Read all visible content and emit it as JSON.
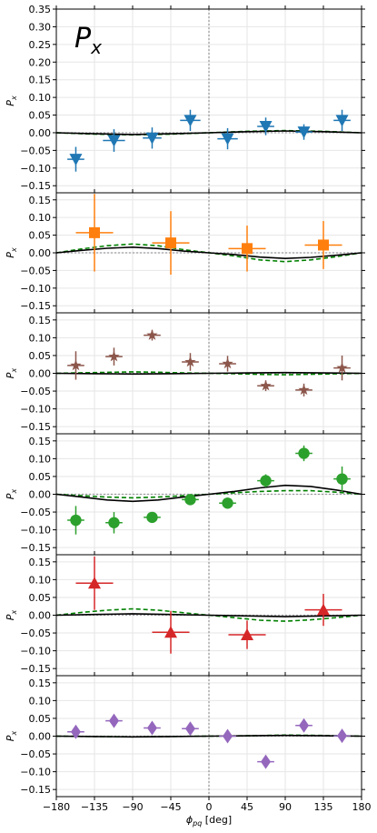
{
  "figure_title": "P_x",
  "chart_data": {
    "type": "scatter",
    "description_of_layout": "six vertically stacked panels sharing the x axis",
    "xlabel": "ϕ_pq [deg]",
    "ylabel": "P_x",
    "xlim": [
      -180,
      180
    ],
    "xticks": [
      -180,
      -135,
      -90,
      -45,
      0,
      45,
      90,
      135,
      180
    ],
    "vline_x": 0,
    "grid": true,
    "panels": [
      {
        "ylim": [
          -0.17,
          0.35
        ],
        "yticks": [
          -0.15,
          -0.1,
          -0.05,
          0.0,
          0.05,
          0.1,
          0.15,
          0.2,
          0.25,
          0.3,
          0.35
        ],
        "color": "#1f77b4",
        "marker": "triangle-down",
        "points": [
          {
            "x": -157,
            "y": -0.075,
            "xerr": 10,
            "yerr": 0.035
          },
          {
            "x": -112,
            "y": -0.022,
            "xerr": 13,
            "yerr": 0.032
          },
          {
            "x": -67,
            "y": -0.015,
            "xerr": 11,
            "yerr": 0.03
          },
          {
            "x": -22,
            "y": 0.035,
            "xerr": 12,
            "yerr": 0.03
          },
          {
            "x": 22,
            "y": -0.017,
            "xerr": 12,
            "yerr": 0.03
          },
          {
            "x": 67,
            "y": 0.018,
            "xerr": 10,
            "yerr": 0.025
          },
          {
            "x": 112,
            "y": 0.002,
            "xerr": 10,
            "yerr": 0.022
          },
          {
            "x": 157,
            "y": 0.035,
            "xerr": 10,
            "yerr": 0.03
          }
        ],
        "solid_curve": [
          [
            -180,
            0
          ],
          [
            -135,
            -0.003
          ],
          [
            -90,
            -0.005
          ],
          [
            -45,
            -0.003
          ],
          [
            0,
            0
          ],
          [
            45,
            0.003
          ],
          [
            90,
            0.005
          ],
          [
            135,
            0.003
          ],
          [
            180,
            0
          ]
        ],
        "dashed_curve": [
          [
            -180,
            0
          ],
          [
            -135,
            -0.004
          ],
          [
            -90,
            -0.006
          ],
          [
            -45,
            -0.004
          ],
          [
            0,
            0
          ],
          [
            45,
            0.004
          ],
          [
            90,
            0.006
          ],
          [
            135,
            0.004
          ],
          [
            180,
            0
          ]
        ]
      },
      {
        "ylim": [
          -0.17,
          0.17
        ],
        "yticks": [
          -0.15,
          -0.1,
          -0.05,
          0.0,
          0.05,
          0.1,
          0.15
        ],
        "color": "#ff7f0e",
        "marker": "square",
        "points": [
          {
            "x": -135,
            "y": 0.057,
            "xerr": 22,
            "yerr": 0.11
          },
          {
            "x": -45,
            "y": 0.028,
            "xerr": 22,
            "yerr": 0.09
          },
          {
            "x": 45,
            "y": 0.012,
            "xerr": 22,
            "yerr": 0.065
          },
          {
            "x": 135,
            "y": 0.022,
            "xerr": 22,
            "yerr": 0.068
          }
        ],
        "solid_curve": [
          [
            -180,
            0
          ],
          [
            -150,
            0.007
          ],
          [
            -120,
            0.013
          ],
          [
            -90,
            0.016
          ],
          [
            -60,
            0.012
          ],
          [
            -30,
            0.005
          ],
          [
            0,
            0
          ],
          [
            30,
            -0.005
          ],
          [
            60,
            -0.012
          ],
          [
            90,
            -0.016
          ],
          [
            120,
            -0.013
          ],
          [
            150,
            -0.007
          ],
          [
            180,
            0
          ]
        ],
        "dashed_curve": [
          [
            -180,
            0
          ],
          [
            -150,
            0.011
          ],
          [
            -120,
            0.02
          ],
          [
            -90,
            0.025
          ],
          [
            -60,
            0.02
          ],
          [
            -30,
            0.009
          ],
          [
            0,
            0
          ],
          [
            30,
            -0.009
          ],
          [
            60,
            -0.02
          ],
          [
            90,
            -0.025
          ],
          [
            120,
            -0.02
          ],
          [
            150,
            -0.011
          ],
          [
            180,
            0
          ]
        ]
      },
      {
        "ylim": [
          -0.17,
          0.17
        ],
        "yticks": [
          -0.15,
          -0.1,
          -0.05,
          0.0,
          0.05,
          0.1,
          0.15
        ],
        "color": "#8c564b",
        "marker": "star",
        "points": [
          {
            "x": -157,
            "y": 0.022,
            "xerr": 10,
            "yerr": 0.04
          },
          {
            "x": -112,
            "y": 0.047,
            "xerr": 10,
            "yerr": 0.025
          },
          {
            "x": -67,
            "y": 0.107,
            "xerr": 10,
            "yerr": 0.015
          },
          {
            "x": -22,
            "y": 0.032,
            "xerr": 10,
            "yerr": 0.025
          },
          {
            "x": 22,
            "y": 0.027,
            "xerr": 10,
            "yerr": 0.022
          },
          {
            "x": 67,
            "y": -0.035,
            "xerr": 10,
            "yerr": 0.015
          },
          {
            "x": 112,
            "y": -0.047,
            "xerr": 10,
            "yerr": 0.018
          },
          {
            "x": 157,
            "y": 0.015,
            "xerr": 10,
            "yerr": 0.035
          }
        ],
        "solid_curve": [
          [
            -180,
            0
          ],
          [
            -135,
            -0.001
          ],
          [
            -90,
            -0.002
          ],
          [
            -45,
            -0.001
          ],
          [
            0,
            0
          ],
          [
            45,
            0.001
          ],
          [
            90,
            0.002
          ],
          [
            135,
            0.001
          ],
          [
            180,
            0
          ]
        ],
        "dashed_curve": [
          [
            -180,
            0
          ],
          [
            -135,
            0.002
          ],
          [
            -90,
            0.004
          ],
          [
            -60,
            0.003
          ],
          [
            -30,
            0.001
          ],
          [
            0,
            0
          ],
          [
            30,
            -0.001
          ],
          [
            60,
            -0.003
          ],
          [
            90,
            -0.004
          ],
          [
            135,
            -0.002
          ],
          [
            180,
            0
          ]
        ]
      },
      {
        "ylim": [
          -0.17,
          0.17
        ],
        "yticks": [
          -0.15,
          -0.1,
          -0.05,
          0.0,
          0.05,
          0.1,
          0.15
        ],
        "color": "#2ca02c",
        "marker": "circle",
        "points": [
          {
            "x": -157,
            "y": -0.073,
            "xerr": 10,
            "yerr": 0.04
          },
          {
            "x": -112,
            "y": -0.08,
            "xerr": 10,
            "yerr": 0.03
          },
          {
            "x": -67,
            "y": -0.065,
            "xerr": 10,
            "yerr": 0.015
          },
          {
            "x": -22,
            "y": -0.015,
            "xerr": 10,
            "yerr": 0.015
          },
          {
            "x": 22,
            "y": -0.025,
            "xerr": 10,
            "yerr": 0.015
          },
          {
            "x": 67,
            "y": 0.038,
            "xerr": 10,
            "yerr": 0.018
          },
          {
            "x": 112,
            "y": 0.115,
            "xerr": 10,
            "yerr": 0.022
          },
          {
            "x": 157,
            "y": 0.043,
            "xerr": 10,
            "yerr": 0.035
          }
        ],
        "solid_curve": [
          [
            -180,
            0
          ],
          [
            -150,
            -0.008
          ],
          [
            -120,
            -0.016
          ],
          [
            -90,
            -0.02
          ],
          [
            -60,
            -0.016
          ],
          [
            -30,
            -0.008
          ],
          [
            0,
            0
          ],
          [
            30,
            0.008
          ],
          [
            60,
            0.018
          ],
          [
            90,
            0.025
          ],
          [
            120,
            0.022
          ],
          [
            150,
            0.012
          ],
          [
            180,
            0
          ]
        ],
        "dashed_curve": [
          [
            -180,
            0
          ],
          [
            -150,
            -0.004
          ],
          [
            -120,
            -0.008
          ],
          [
            -90,
            -0.01
          ],
          [
            -60,
            -0.008
          ],
          [
            -30,
            -0.004
          ],
          [
            0,
            0
          ],
          [
            30,
            0.004
          ],
          [
            60,
            0.008
          ],
          [
            90,
            0.01
          ],
          [
            120,
            0.01
          ],
          [
            150,
            0.006
          ],
          [
            180,
            0
          ]
        ]
      },
      {
        "ylim": [
          -0.17,
          0.17
        ],
        "yticks": [
          -0.15,
          -0.1,
          -0.05,
          0.0,
          0.05,
          0.1,
          0.15
        ],
        "color": "#d62728",
        "marker": "triangle-up",
        "points": [
          {
            "x": -135,
            "y": 0.09,
            "xerr": 22,
            "yerr": 0.075
          },
          {
            "x": -45,
            "y": -0.048,
            "xerr": 22,
            "yerr": 0.06
          },
          {
            "x": 45,
            "y": -0.055,
            "xerr": 22,
            "yerr": 0.04
          },
          {
            "x": 135,
            "y": 0.015,
            "xerr": 22,
            "yerr": 0.045
          }
        ],
        "solid_curve": [
          [
            -180,
            0
          ],
          [
            -135,
            0.002
          ],
          [
            -90,
            0.004
          ],
          [
            -45,
            0.002
          ],
          [
            0,
            0
          ],
          [
            45,
            -0.002
          ],
          [
            90,
            -0.004
          ],
          [
            135,
            -0.002
          ],
          [
            180,
            0
          ]
        ],
        "dashed_curve": [
          [
            -180,
            0
          ],
          [
            -150,
            0.008
          ],
          [
            -120,
            0.014
          ],
          [
            -90,
            0.018
          ],
          [
            -60,
            0.014
          ],
          [
            -30,
            0.007
          ],
          [
            0,
            0
          ],
          [
            30,
            -0.007
          ],
          [
            60,
            -0.014
          ],
          [
            90,
            -0.017
          ],
          [
            120,
            -0.013
          ],
          [
            150,
            -0.007
          ],
          [
            180,
            0
          ]
        ]
      },
      {
        "ylim": [
          -0.17,
          0.17
        ],
        "yticks": [
          -0.15,
          -0.1,
          -0.05,
          0.0,
          0.05,
          0.1,
          0.15
        ],
        "color": "#9467bd",
        "marker": "diamond",
        "points": [
          {
            "x": -157,
            "y": 0.012,
            "xerr": 10,
            "yerr": 0.015
          },
          {
            "x": -112,
            "y": 0.043,
            "xerr": 10,
            "yerr": 0.015
          },
          {
            "x": -67,
            "y": 0.023,
            "xerr": 10,
            "yerr": 0.015
          },
          {
            "x": -22,
            "y": 0.021,
            "xerr": 10,
            "yerr": 0.015
          },
          {
            "x": 22,
            "y": 0.0,
            "xerr": 10,
            "yerr": 0.012
          },
          {
            "x": 67,
            "y": -0.072,
            "xerr": 10,
            "yerr": 0.01
          },
          {
            "x": 112,
            "y": 0.03,
            "xerr": 10,
            "yerr": 0.012
          },
          {
            "x": 157,
            "y": 0.001,
            "xerr": 10,
            "yerr": 0.012
          }
        ],
        "solid_curve": [
          [
            -180,
            0
          ],
          [
            -135,
            -0.001
          ],
          [
            -90,
            -0.002
          ],
          [
            -45,
            -0.001
          ],
          [
            0,
            0
          ],
          [
            45,
            0.001
          ],
          [
            90,
            0.002
          ],
          [
            135,
            0.001
          ],
          [
            180,
            0
          ]
        ],
        "dashed_curve": [
          [
            -180,
            0
          ],
          [
            -135,
            -0.001
          ],
          [
            -90,
            -0.002
          ],
          [
            -45,
            -0.001
          ],
          [
            0,
            0
          ],
          [
            45,
            0.001
          ],
          [
            90,
            0.003
          ],
          [
            135,
            0.002
          ],
          [
            180,
            0
          ]
        ]
      }
    ],
    "colors": {
      "solid_curve": "#000000",
      "dashed_curve": "#008000",
      "zero_line": "#9a9aa0",
      "grid": "#e6e6e6",
      "vline": "#808080"
    }
  }
}
